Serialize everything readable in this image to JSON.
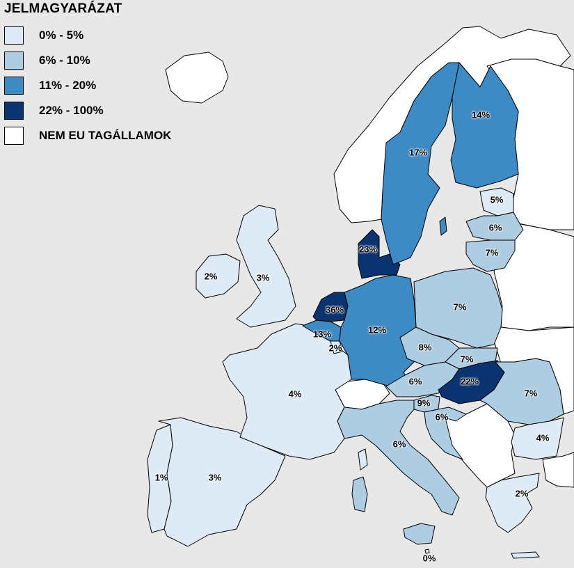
{
  "legend": {
    "title": "JELMAGYARÁZAT",
    "items": [
      {
        "label": "0% - 5%",
        "color": "#deebf7"
      },
      {
        "label": "6% - 10%",
        "color": "#aecde2"
      },
      {
        "label": "11% - 20%",
        "color": "#3d8ac5"
      },
      {
        "label": "22% - 100%",
        "color": "#0b3370"
      },
      {
        "label": "NEM EU TAGÁLLAMOK",
        "color": "#ffffff"
      }
    ]
  },
  "colors": {
    "sea": "#e8e8e8",
    "border": "#000000"
  },
  "countries": [
    {
      "id": "portugal",
      "label": "1%",
      "value": 1
    },
    {
      "id": "spain",
      "label": "3%",
      "value": 3
    },
    {
      "id": "france",
      "label": "4%",
      "value": 4
    },
    {
      "id": "ireland",
      "label": "2%",
      "value": 2
    },
    {
      "id": "united-kingdom",
      "label": "3%",
      "value": 3
    },
    {
      "id": "belgium",
      "label": "13%",
      "value": 13
    },
    {
      "id": "netherlands",
      "label": "36%",
      "value": 36
    },
    {
      "id": "luxembourg",
      "label": "2%",
      "value": 2
    },
    {
      "id": "germany",
      "label": "12%",
      "value": 12
    },
    {
      "id": "denmark",
      "label": "23%",
      "value": 23
    },
    {
      "id": "sweden",
      "label": "17%",
      "value": 17
    },
    {
      "id": "finland",
      "label": "14%",
      "value": 14
    },
    {
      "id": "estonia",
      "label": "5%",
      "value": 5
    },
    {
      "id": "latvia",
      "label": "6%",
      "value": 6
    },
    {
      "id": "lithuania",
      "label": "7%",
      "value": 7
    },
    {
      "id": "poland",
      "label": "7%",
      "value": 7
    },
    {
      "id": "czech-republic",
      "label": "8%",
      "value": 8
    },
    {
      "id": "slovakia",
      "label": "7%",
      "value": 7
    },
    {
      "id": "austria",
      "label": "6%",
      "value": 6
    },
    {
      "id": "hungary",
      "label": "22%",
      "value": 22
    },
    {
      "id": "slovenia",
      "label": "9%",
      "value": 9
    },
    {
      "id": "croatia",
      "label": "6%",
      "value": 6
    },
    {
      "id": "romania",
      "label": "7%",
      "value": 7
    },
    {
      "id": "bulgaria",
      "label": "4%",
      "value": 4
    },
    {
      "id": "italy",
      "label": "6%",
      "value": 6
    },
    {
      "id": "greece",
      "label": "2%",
      "value": 2
    },
    {
      "id": "malta",
      "label": "0%",
      "value": 0
    }
  ]
}
